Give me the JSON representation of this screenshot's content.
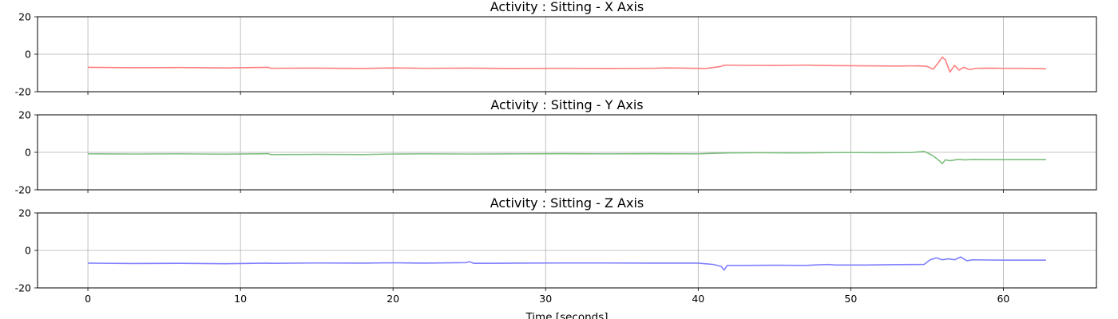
{
  "chart_data": [
    {
      "type": "line",
      "title": "Activity : Sitting - X Axis",
      "color": "#ff7f7f",
      "xlim": [
        -3.3,
        66.1
      ],
      "ylim": [
        -20,
        20
      ],
      "xticks": [
        0,
        10,
        20,
        30,
        40,
        50,
        60
      ],
      "yticks": [
        -20,
        0,
        20
      ],
      "grid": true,
      "series": [
        {
          "x": [
            0,
            3,
            6,
            9,
            11.8,
            12,
            15,
            18,
            20,
            22,
            25,
            28,
            31,
            34,
            37,
            38,
            40.5,
            41.5,
            41.7,
            43,
            45,
            47,
            49,
            51,
            53,
            54.5,
            55,
            55.4,
            55.7,
            56,
            56.2,
            56.5,
            56.8,
            57.1,
            57.4,
            57.8,
            58.2,
            59,
            60,
            61,
            62,
            62.8
          ],
          "y": [
            -7,
            -7.2,
            -7.1,
            -7.3,
            -7,
            -7.5,
            -7.4,
            -7.6,
            -7.3,
            -7.5,
            -7.4,
            -7.6,
            -7.5,
            -7.6,
            -7.5,
            -7.3,
            -7.6,
            -6.5,
            -5.8,
            -5.9,
            -6,
            -5.8,
            -6.1,
            -6.2,
            -6.3,
            -6.2,
            -6.5,
            -8,
            -5,
            -1.5,
            -3,
            -9.5,
            -6,
            -8.5,
            -7,
            -8.2,
            -7.5,
            -7.4,
            -7.5,
            -7.5,
            -7.6,
            -7.8
          ]
        }
      ]
    },
    {
      "type": "line",
      "title": "Activity : Sitting - Y Axis",
      "color": "#7fbf7f",
      "xlim": [
        -3.3,
        66.1
      ],
      "ylim": [
        -20,
        20
      ],
      "xticks": [
        0,
        10,
        20,
        30,
        40,
        50,
        60
      ],
      "yticks": [
        -20,
        0,
        20
      ],
      "grid": true,
      "series": [
        {
          "x": [
            0,
            3,
            6,
            9,
            11.8,
            12,
            15,
            18,
            20,
            22,
            25,
            28,
            31,
            34,
            37,
            40,
            41,
            42,
            44,
            46,
            48,
            50,
            52,
            54,
            54.8,
            55.2,
            55.5,
            55.8,
            56,
            56.2,
            56.5,
            57,
            57.5,
            58,
            59,
            60,
            61,
            62,
            62.8
          ],
          "y": [
            -0.8,
            -0.9,
            -0.8,
            -1,
            -0.7,
            -1.2,
            -1.1,
            -1.2,
            -0.9,
            -0.8,
            -0.9,
            -0.8,
            -0.7,
            -0.8,
            -0.7,
            -0.8,
            -0.5,
            -0.3,
            -0.2,
            -0.3,
            -0.2,
            -0.1,
            -0.2,
            -0.1,
            0.5,
            -1,
            -2.5,
            -4.5,
            -6,
            -4,
            -4.5,
            -3.8,
            -4,
            -3.8,
            -3.9,
            -3.9,
            -3.9,
            -3.9,
            -3.9
          ]
        }
      ]
    },
    {
      "type": "line",
      "title": "Activity : Sitting - Z Axis",
      "color": "#7f7fff",
      "xlabel": "Time [seconds]",
      "xlim": [
        -3.3,
        66.1
      ],
      "ylim": [
        -20,
        20
      ],
      "xticks": [
        0,
        10,
        20,
        30,
        40,
        50,
        60
      ],
      "yticks": [
        -20,
        0,
        20
      ],
      "grid": true,
      "series": [
        {
          "x": [
            0,
            3,
            6,
            9,
            11.8,
            12,
            15,
            18,
            20,
            22,
            24.8,
            25,
            25.3,
            28,
            31,
            34,
            37,
            40,
            41,
            41.5,
            41.7,
            41.9,
            43,
            45,
            47,
            48.5,
            49,
            51,
            53,
            54.8,
            55.2,
            55.6,
            56,
            56.4,
            56.8,
            57.2,
            57.6,
            58,
            59,
            60,
            61,
            62,
            62.8
          ],
          "y": [
            -6.8,
            -7,
            -6.9,
            -7.1,
            -6.8,
            -6.9,
            -6.7,
            -6.8,
            -6.6,
            -6.8,
            -6.5,
            -6,
            -6.9,
            -6.8,
            -6.7,
            -6.7,
            -6.8,
            -6.8,
            -7.5,
            -8.5,
            -10.5,
            -8,
            -8,
            -7.9,
            -8,
            -7.5,
            -7.8,
            -7.8,
            -7.6,
            -7.5,
            -5,
            -4,
            -5,
            -4.5,
            -5,
            -3.5,
            -5.5,
            -5,
            -5.1,
            -5.2,
            -5.2,
            -5.2,
            -5.2
          ]
        }
      ]
    }
  ]
}
